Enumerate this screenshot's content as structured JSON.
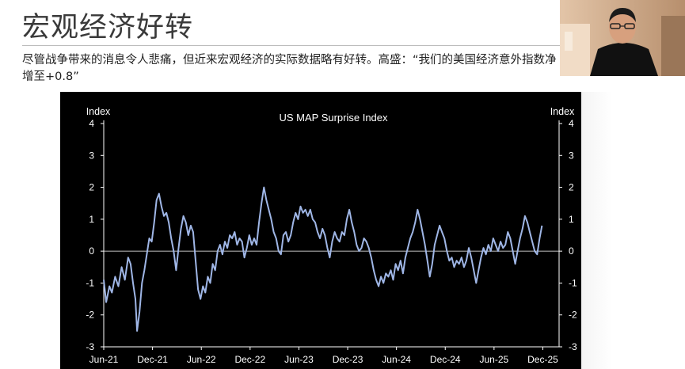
{
  "slide": {
    "title": "宏观经济好转",
    "subtitle": "尽管战争带来的消息令人悲痛，但近来宏观经济的实际数据略有好转。高盛：“我们的美国经济意外指数净增至+0.8”"
  },
  "colors": {
    "chart_bg": "#000000",
    "line": "#9fb6e6",
    "text": "#ffffff",
    "zero_line": "#ffffff"
  },
  "chart_data": {
    "type": "line",
    "title": "US MAP Surprise Index",
    "ylabel_left": "Index",
    "ylabel_right": "Index",
    "ylim": [
      -3,
      4
    ],
    "yticks": [
      4,
      3,
      2,
      1,
      0,
      -1,
      -2,
      -3
    ],
    "x_tick_labels": [
      "Jun-21",
      "Dec-21",
      "Jun-22",
      "Dec-22",
      "Jun-23",
      "Dec-23",
      "Jun-24",
      "Dec-24",
      "Jun-25",
      "Dec-25"
    ],
    "x_range_months": [
      0,
      56
    ],
    "x_tick_months": [
      0,
      6,
      12,
      18,
      24,
      30,
      36,
      42,
      48,
      54
    ],
    "series": [
      {
        "values_by_month": [
          [
            0.0,
            -0.9
          ],
          [
            0.3,
            -1.6
          ],
          [
            0.7,
            -1.1
          ],
          [
            1.0,
            -1.3
          ],
          [
            1.4,
            -0.8
          ],
          [
            1.8,
            -1.1
          ],
          [
            2.2,
            -0.5
          ],
          [
            2.6,
            -0.9
          ],
          [
            3.0,
            -0.2
          ],
          [
            3.3,
            -0.4
          ],
          [
            3.6,
            -1.0
          ],
          [
            3.9,
            -1.5
          ],
          [
            4.1,
            -2.5
          ],
          [
            4.4,
            -1.9
          ],
          [
            4.7,
            -1.0
          ],
          [
            5.0,
            -0.6
          ],
          [
            5.3,
            -0.1
          ],
          [
            5.6,
            0.4
          ],
          [
            5.9,
            0.3
          ],
          [
            6.2,
            0.9
          ],
          [
            6.5,
            1.6
          ],
          [
            6.8,
            1.8
          ],
          [
            7.1,
            1.4
          ],
          [
            7.4,
            1.1
          ],
          [
            7.7,
            1.2
          ],
          [
            8.0,
            0.9
          ],
          [
            8.3,
            0.4
          ],
          [
            8.6,
            0.0
          ],
          [
            8.9,
            -0.6
          ],
          [
            9.2,
            0.1
          ],
          [
            9.5,
            0.7
          ],
          [
            9.8,
            1.1
          ],
          [
            10.1,
            0.9
          ],
          [
            10.4,
            0.5
          ],
          [
            10.7,
            0.8
          ],
          [
            11.0,
            0.6
          ],
          [
            11.3,
            -0.3
          ],
          [
            11.6,
            -1.2
          ],
          [
            11.9,
            -1.5
          ],
          [
            12.2,
            -1.1
          ],
          [
            12.5,
            -1.3
          ],
          [
            12.8,
            -0.8
          ],
          [
            13.1,
            -1.0
          ],
          [
            13.4,
            -0.4
          ],
          [
            13.7,
            -0.6
          ],
          [
            14.0,
            0.0
          ],
          [
            14.3,
            0.2
          ],
          [
            14.6,
            -0.1
          ],
          [
            14.9,
            0.3
          ],
          [
            15.2,
            0.1
          ],
          [
            15.5,
            0.5
          ],
          [
            15.8,
            0.4
          ],
          [
            16.1,
            0.6
          ],
          [
            16.4,
            0.2
          ],
          [
            16.7,
            0.4
          ],
          [
            17.0,
            0.3
          ],
          [
            17.3,
            -0.2
          ],
          [
            17.6,
            0.1
          ],
          [
            17.9,
            0.5
          ],
          [
            18.2,
            0.2
          ],
          [
            18.5,
            0.4
          ],
          [
            18.8,
            0.2
          ],
          [
            19.1,
            0.9
          ],
          [
            19.4,
            1.5
          ],
          [
            19.7,
            2.0
          ],
          [
            20.0,
            1.6
          ],
          [
            20.3,
            1.3
          ],
          [
            20.6,
            1.0
          ],
          [
            20.9,
            0.6
          ],
          [
            21.2,
            0.4
          ],
          [
            21.5,
            0.0
          ],
          [
            21.8,
            -0.1
          ],
          [
            22.1,
            0.5
          ],
          [
            22.4,
            0.6
          ],
          [
            22.7,
            0.3
          ],
          [
            23.0,
            0.5
          ],
          [
            23.3,
            0.9
          ],
          [
            23.6,
            1.2
          ],
          [
            23.9,
            1.0
          ],
          [
            24.2,
            1.4
          ],
          [
            24.5,
            1.2
          ],
          [
            24.8,
            1.3
          ],
          [
            25.1,
            1.1
          ],
          [
            25.4,
            1.3
          ],
          [
            25.7,
            1.0
          ],
          [
            26.0,
            0.9
          ],
          [
            26.3,
            0.6
          ],
          [
            26.6,
            0.4
          ],
          [
            26.9,
            0.7
          ],
          [
            27.2,
            0.5
          ],
          [
            27.5,
            0.1
          ],
          [
            27.8,
            -0.2
          ],
          [
            28.1,
            0.3
          ],
          [
            28.4,
            0.6
          ],
          [
            28.7,
            0.4
          ],
          [
            29.0,
            0.3
          ],
          [
            29.3,
            0.6
          ],
          [
            29.6,
            0.5
          ],
          [
            29.9,
            1.0
          ],
          [
            30.2,
            1.3
          ],
          [
            30.5,
            0.9
          ],
          [
            30.8,
            0.6
          ],
          [
            31.1,
            0.2
          ],
          [
            31.4,
            0.0
          ],
          [
            31.7,
            0.1
          ],
          [
            32.0,
            0.4
          ],
          [
            32.3,
            0.3
          ],
          [
            32.6,
            0.1
          ],
          [
            32.9,
            -0.2
          ],
          [
            33.2,
            -0.6
          ],
          [
            33.5,
            -0.9
          ],
          [
            33.8,
            -1.1
          ],
          [
            34.1,
            -0.8
          ],
          [
            34.4,
            -1.0
          ],
          [
            34.7,
            -0.7
          ],
          [
            35.0,
            -0.8
          ],
          [
            35.3,
            -0.6
          ],
          [
            35.6,
            -0.9
          ],
          [
            35.9,
            -0.4
          ],
          [
            36.2,
            -0.6
          ],
          [
            36.5,
            -0.3
          ],
          [
            36.8,
            -0.7
          ],
          [
            37.1,
            -0.2
          ],
          [
            37.4,
            0.1
          ],
          [
            37.7,
            0.4
          ],
          [
            38.0,
            0.6
          ],
          [
            38.3,
            0.9
          ],
          [
            38.6,
            1.3
          ],
          [
            38.9,
            1.0
          ],
          [
            39.2,
            0.6
          ],
          [
            39.5,
            0.2
          ],
          [
            39.8,
            -0.3
          ],
          [
            40.1,
            -0.8
          ],
          [
            40.4,
            -0.4
          ],
          [
            40.7,
            0.2
          ],
          [
            41.0,
            0.5
          ],
          [
            41.3,
            0.8
          ],
          [
            41.6,
            0.6
          ],
          [
            41.9,
            0.4
          ],
          [
            42.2,
            0.0
          ],
          [
            42.5,
            -0.3
          ],
          [
            42.8,
            -0.2
          ],
          [
            43.1,
            -0.5
          ],
          [
            43.4,
            -0.3
          ],
          [
            43.7,
            -0.4
          ],
          [
            44.0,
            -0.2
          ],
          [
            44.3,
            -0.5
          ],
          [
            44.6,
            -0.3
          ],
          [
            44.9,
            0.1
          ],
          [
            45.2,
            -0.2
          ],
          [
            45.5,
            -0.6
          ],
          [
            45.8,
            -1.0
          ],
          [
            46.1,
            -0.6
          ],
          [
            46.4,
            -0.2
          ],
          [
            46.7,
            0.1
          ],
          [
            47.0,
            -0.1
          ],
          [
            47.3,
            0.2
          ],
          [
            47.6,
            0.0
          ],
          [
            47.9,
            0.4
          ],
          [
            48.2,
            0.2
          ],
          [
            48.5,
            0.0
          ],
          [
            48.8,
            0.3
          ],
          [
            49.1,
            0.1
          ],
          [
            49.4,
            0.2
          ],
          [
            49.7,
            0.6
          ],
          [
            50.0,
            0.4
          ],
          [
            50.3,
            0.0
          ],
          [
            50.6,
            -0.4
          ],
          [
            50.9,
            0.0
          ],
          [
            51.2,
            0.4
          ],
          [
            51.5,
            0.7
          ],
          [
            51.8,
            1.1
          ],
          [
            52.1,
            0.9
          ],
          [
            52.4,
            0.6
          ],
          [
            52.7,
            0.3
          ],
          [
            53.0,
            0.0
          ],
          [
            53.3,
            -0.1
          ],
          [
            53.6,
            0.4
          ],
          [
            53.9,
            0.8
          ]
        ]
      }
    ]
  }
}
